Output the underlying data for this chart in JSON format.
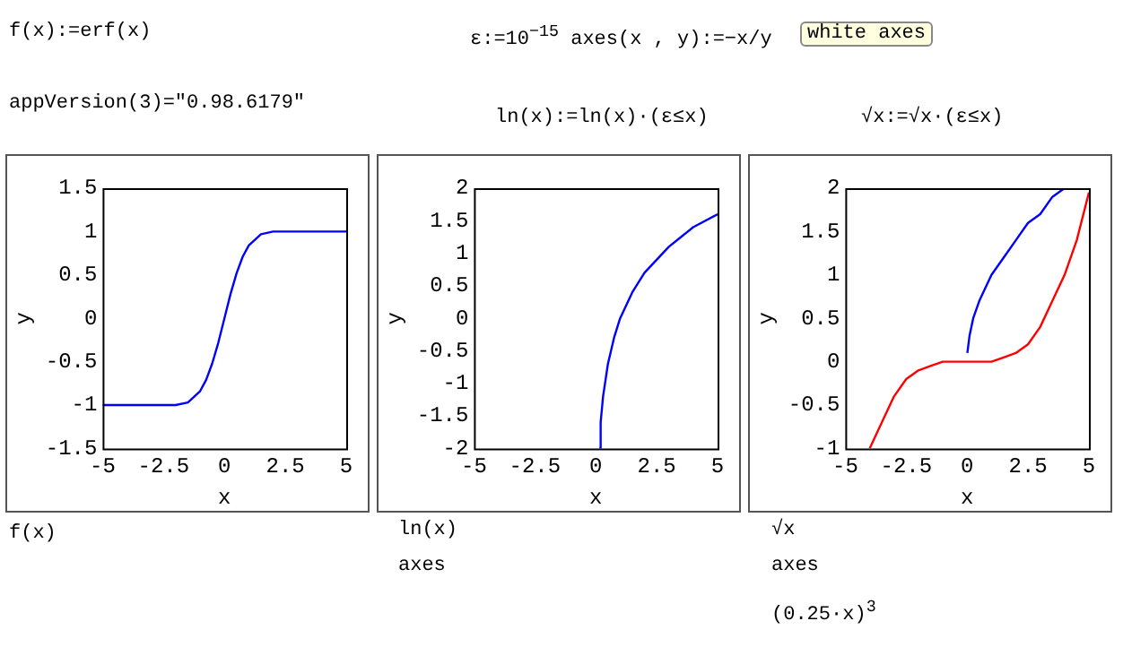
{
  "chart_data": [
    {
      "type": "line",
      "xlabel": "x",
      "ylabel": "y",
      "xlim": [
        -5,
        5
      ],
      "xticks": [
        -5,
        -2.5,
        0,
        2.5,
        5
      ],
      "ylim": [
        -1.5,
        1.5
      ],
      "yticks": [
        -1.5,
        -1,
        -0.5,
        0,
        0.5,
        1,
        1.5
      ],
      "grid": false,
      "legend": false,
      "marker": "none",
      "annotations": [
        "f(x):=erf(x)",
        "appVersion(3)=\"0.98.6179\"",
        "f(x)"
      ],
      "series": [
        {
          "color": "#0000ff",
          "x": [
            -5,
            -3,
            -2,
            -1.5,
            -1,
            -0.75,
            -0.5,
            -0.25,
            0,
            0.25,
            0.5,
            0.75,
            1,
            1.5,
            2,
            3,
            5
          ],
          "values": [
            -1,
            -1,
            -1,
            -0.97,
            -0.84,
            -0.71,
            -0.52,
            -0.28,
            0,
            0.28,
            0.52,
            0.71,
            0.84,
            0.97,
            1,
            1,
            1
          ]
        }
      ]
    },
    {
      "type": "line",
      "xlabel": "x",
      "ylabel": "y",
      "xlim": [
        -5,
        5
      ],
      "xticks": [
        -5,
        -2.5,
        0,
        2.5,
        5
      ],
      "ylim": [
        -2,
        2
      ],
      "yticks": [
        -2,
        -1.5,
        -1,
        -0.5,
        0,
        0.5,
        1,
        1.5,
        2
      ],
      "grid": false,
      "legend": false,
      "marker": "none",
      "annotations": [
        "ε:=10$^{−15}$   axes(x , y):=−x/y",
        "white axes",
        "ln(x):=ln(x)·(ε≤x)",
        "ln(x)",
        "axes"
      ],
      "series": [
        {
          "color": "#0000ff",
          "x": [
            0.14,
            0.2,
            0.3,
            0.5,
            0.75,
            1,
            1.5,
            2,
            3,
            4,
            5
          ],
          "values": [
            -2,
            -1.6,
            -1.2,
            -0.7,
            -0.3,
            0,
            0.4,
            0.7,
            1.1,
            1.4,
            1.6
          ]
        }
      ]
    },
    {
      "type": "line",
      "xlabel": "x",
      "ylabel": "y",
      "xlim": [
        -5,
        5
      ],
      "xticks": [
        -5,
        -2.5,
        0,
        2.5,
        5
      ],
      "ylim": [
        -1,
        2
      ],
      "yticks": [
        -1,
        -0.5,
        0,
        0.5,
        1,
        1.5,
        2
      ],
      "grid": false,
      "legend": false,
      "marker": "none",
      "annotations": [
        "√x:=√x·(ε≤x)",
        "√x",
        "axes",
        "(0.25·x)$^{3}$"
      ],
      "series": [
        {
          "color": "#0000ff",
          "x": [
            0.01,
            0.1,
            0.25,
            0.5,
            1,
            1.5,
            2,
            2.5,
            3,
            3.5,
            4
          ],
          "values": [
            0.1,
            0.3,
            0.5,
            0.7,
            1,
            1.2,
            1.4,
            1.6,
            1.7,
            1.9,
            2
          ]
        },
        {
          "color": "#ff0000",
          "x": [
            -4,
            -3.5,
            -3,
            -2.5,
            -2,
            -1.5,
            -1,
            0,
            1,
            1.5,
            2,
            2.5,
            3,
            3.5,
            4,
            4.5,
            5
          ],
          "values": [
            -1,
            -0.7,
            -0.4,
            -0.2,
            -0.1,
            -0.05,
            0,
            0,
            0,
            0.05,
            0.1,
            0.2,
            0.4,
            0.7,
            1,
            1.4,
            1.95
          ]
        }
      ]
    }
  ]
}
